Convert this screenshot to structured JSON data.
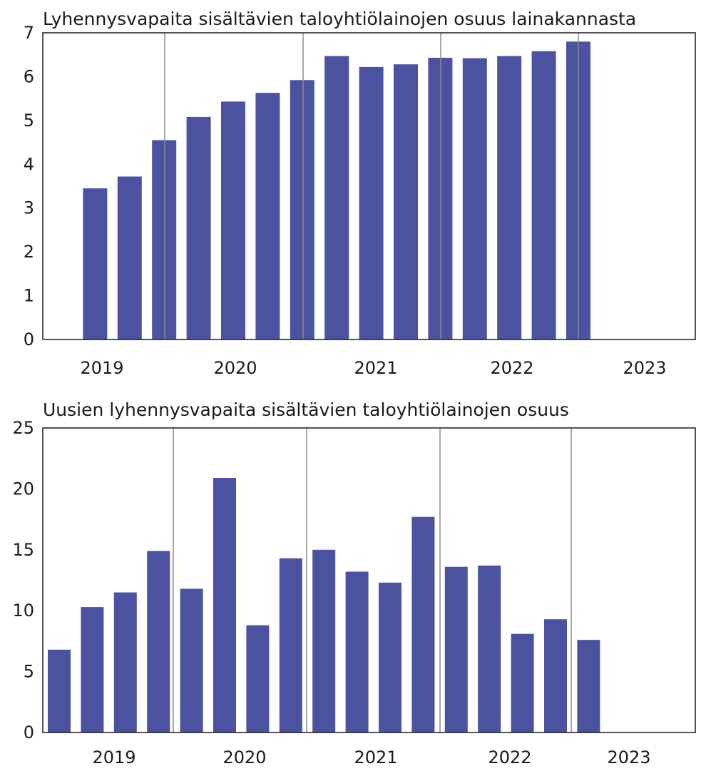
{
  "colors": {
    "bar": "#4b53a0",
    "frame": "#1a1a1a",
    "divider": "#8c8c8c",
    "text": "#1a1a1a"
  },
  "chart_data": [
    {
      "type": "bar",
      "title": "Lyhennysvapaita sisältävien taloyhtiölainojen osuus lainakannasta",
      "xlabel": "",
      "ylabel": "",
      "ylim": [
        0,
        7
      ],
      "yticks": [
        0,
        1,
        2,
        3,
        4,
        5,
        6,
        7
      ],
      "year_labels": [
        "2019",
        "2020",
        "2021",
        "2022",
        "2023"
      ],
      "grid": false,
      "values": [
        null,
        3.45,
        3.72,
        4.55,
        5.08,
        5.43,
        5.63,
        5.92,
        6.47,
        6.22,
        6.28,
        6.43,
        6.42,
        6.47,
        6.58,
        6.8
      ]
    },
    {
      "type": "bar",
      "title": "Uusien lyhennysvapaita sisältävien taloyhtiölainojen osuus",
      "xlabel": "",
      "ylabel": "",
      "ylim": [
        0,
        25
      ],
      "yticks": [
        0,
        5,
        10,
        15,
        20,
        25
      ],
      "year_labels": [
        "2019",
        "2020",
        "2021",
        "2022",
        "2023"
      ],
      "grid": false,
      "values": [
        6.8,
        10.3,
        11.5,
        14.9,
        11.8,
        20.9,
        8.8,
        14.3,
        15.0,
        13.2,
        12.3,
        17.7,
        13.6,
        13.7,
        8.1,
        9.3,
        7.6
      ]
    }
  ]
}
